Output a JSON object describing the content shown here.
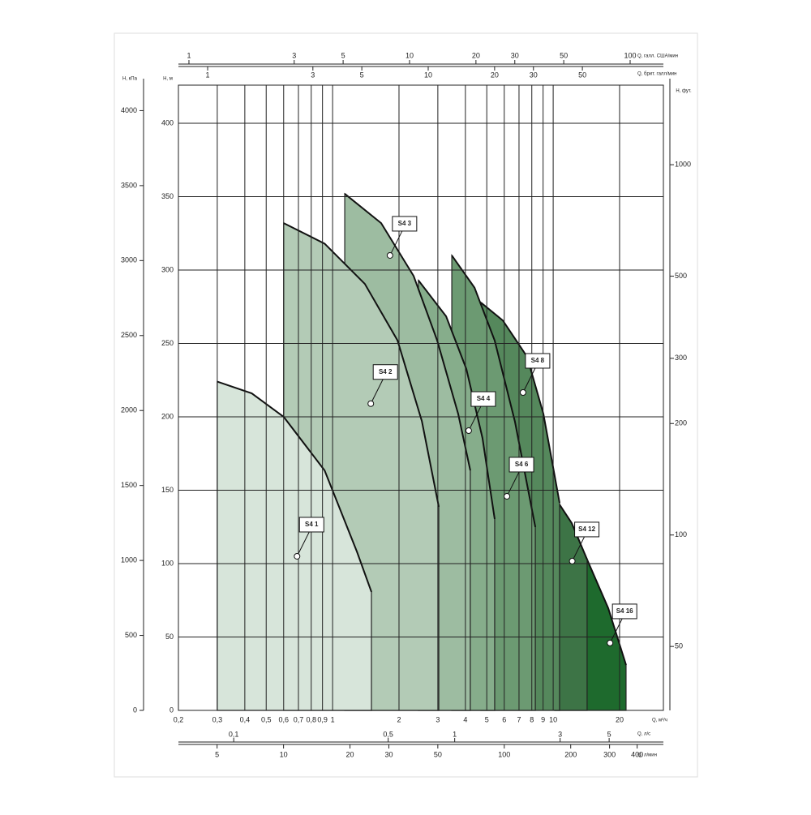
{
  "chart_data": {
    "type": "area",
    "log_x": true,
    "grid": true,
    "x_label": "Q, м³/ч",
    "y_label": "H, м",
    "xlim": [
      0.2,
      31.6
    ],
    "ylim": [
      0,
      426
    ],
    "xticks": [
      {
        "value": 0.2,
        "label": "0,2"
      },
      {
        "value": 0.3,
        "label": "0,3"
      },
      {
        "value": 0.4,
        "label": "0,4"
      },
      {
        "value": 0.5,
        "label": "0,5"
      },
      {
        "value": 0.6,
        "label": "0,6"
      },
      {
        "value": 0.7,
        "label": "0,7"
      },
      {
        "value": 0.8,
        "label": "0,8"
      },
      {
        "value": 0.9,
        "label": "0,9"
      },
      1,
      2,
      3,
      4,
      5,
      6,
      7,
      8,
      9,
      10,
      20
    ],
    "yticks": [
      0,
      50,
      100,
      150,
      200,
      250,
      300,
      350,
      400
    ],
    "axes": [
      {
        "label": "H, кПа",
        "lim": [
          0,
          4170
        ],
        "ticks": [
          0,
          500,
          1000,
          1500,
          2000,
          2500,
          3000,
          3500,
          4000
        ],
        "log": false
      },
      {
        "label": "H, фут.",
        "lim": [
          33.6,
          1640
        ],
        "ticks": [
          50,
          100,
          200,
          300,
          500,
          1000
        ],
        "log": true
      },
      {
        "label": "Q, галл. США/мин",
        "lim": [
          0.896,
          141.5
        ],
        "ticks": [
          1,
          3,
          5,
          10,
          20,
          30,
          50,
          100
        ],
        "log": true
      },
      {
        "label": "Q, брит. галл/мин",
        "lim": [
          0.737,
          116.5
        ],
        "ticks": [
          1,
          3,
          5,
          10,
          20,
          30,
          50
        ],
        "log": true
      },
      {
        "label": "Q, л/с",
        "lim": [
          0.0562,
          8.8
        ],
        "ticks": [
          {
            "value": 0.1,
            "label": "0,1"
          },
          {
            "value": 0.5,
            "label": "0,5"
          },
          1,
          3,
          5
        ],
        "log": true
      },
      {
        "label": "Q, л/мин",
        "lim": [
          3.34,
          526
        ],
        "ticks": [
          5,
          10,
          20,
          30,
          50,
          100,
          200,
          300,
          400
        ],
        "log": true
      }
    ],
    "series": [
      {
        "name": "S4 1",
        "color": "#d7e5da",
        "x": [
          0.3,
          0.43,
          0.6,
          0.92,
          1.29,
          1.5
        ],
        "values": [
          224,
          216,
          200,
          163.5,
          108,
          80.7
        ],
        "marker": {
          "x": 0.69,
          "y": 105
        }
      },
      {
        "name": "S4 2",
        "color": "#b3cbb6",
        "x": [
          0.6,
          0.92,
          1.4,
          1.97,
          2.54,
          3.03
        ],
        "values": [
          332,
          318,
          290.6,
          252,
          197,
          138.7
        ],
        "marker": {
          "x": 1.49,
          "y": 209
        }
      },
      {
        "name": "S4 3",
        "color": "#9dbca1",
        "x": [
          1.135,
          1.66,
          2.33,
          2.98,
          3.71,
          4.21
        ],
        "values": [
          352,
          332,
          296,
          252,
          202,
          163.5
        ],
        "marker": {
          "x": 1.82,
          "y": 310
        }
      },
      {
        "name": "S4 4",
        "color": "#86ad8b",
        "x": [
          2.45,
          3.27,
          4.04,
          4.78,
          5.43
        ],
        "values": [
          293,
          268.5,
          232.6,
          185.6,
          130.4
        ],
        "marker": {
          "x": 4.14,
          "y": 190.6
        }
      },
      {
        "name": "S4 6",
        "color": "#6c9a72",
        "x": [
          3.47,
          4.4,
          5.43,
          6.71,
          8.3
        ],
        "values": [
          310,
          288,
          252,
          196.7,
          124.9
        ],
        "marker": {
          "x": 6.17,
          "y": 145.9
        }
      },
      {
        "name": "S4 8",
        "color": "#55885c",
        "x": [
          4.7,
          5.91,
          7.62,
          9.03,
          10.69
        ],
        "values": [
          277.9,
          265.7,
          240.9,
          202,
          141.4
        ],
        "marker": {
          "x": 7.3,
          "y": 216.6
        }
      },
      {
        "name": "S4 12",
        "color": "#3d7446",
        "x": [
          10.16,
          12.14,
          14.25
        ],
        "values": [
          145.3,
          127.6,
          102.8
        ],
        "marker": {
          "x": 12.2,
          "y": 101.7
        }
      },
      {
        "name": "S4 16",
        "color": "#1e6a2d",
        "x": [
          10.16,
          14.25,
          17.77,
          21.4
        ],
        "values": [
          138.7,
          102.8,
          69.6,
          30.9
        ],
        "marker": {
          "x": 18.1,
          "y": 45.9
        }
      }
    ]
  }
}
